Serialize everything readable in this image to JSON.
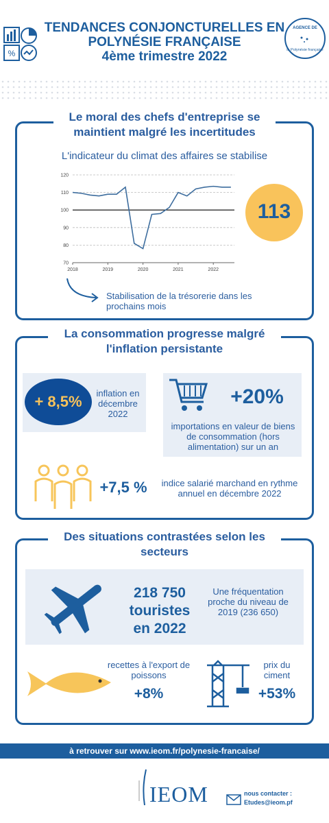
{
  "header": {
    "title_lines": [
      "TENDANCES CONJONCTURELLES EN",
      "POLYNÉSIE FRANÇAISE",
      "4ème trimestre 2022"
    ],
    "logo_top": "AGENCE DE",
    "logo_bottom": "la Polynésie française"
  },
  "section1": {
    "heading": "Le moral des chefs d'entreprise se maintient malgré les incertitudes",
    "subtitle": "L'indicateur du climat des affaires se stabilise",
    "highlight": "113",
    "note": "Stabilisation de la trésorerie dans les prochains mois"
  },
  "chart_data": {
    "type": "line",
    "x": [
      2018,
      2018.25,
      2018.5,
      2018.75,
      2019,
      2019.25,
      2019.5,
      2019.75,
      2020,
      2020.25,
      2020.5,
      2020.75,
      2021,
      2021.25,
      2021.5,
      2021.75,
      2022,
      2022.25,
      2022.5
    ],
    "series": [
      {
        "color": "#3d6d9e",
        "values": [
          110,
          109.5,
          108.5,
          108,
          109,
          109,
          113,
          81,
          78,
          97.5,
          98,
          101.5,
          110,
          108,
          112,
          113,
          113.5,
          113,
          113
        ]
      }
    ],
    "xlim": [
      2018,
      2022.6
    ],
    "xticks": [
      2018,
      2019,
      2020,
      2021,
      2022
    ],
    "ylim": [
      70,
      120
    ],
    "yticks": [
      70,
      80,
      90,
      100,
      110,
      120
    ],
    "grid": true,
    "baseline": 100
  },
  "section2": {
    "heading": "La consommation progresse malgré l'inflation persistante",
    "inflation_value": "+ 8,5%",
    "inflation_text": "inflation en décembre 2022",
    "imports_value": "+20%",
    "imports_text": "importations en valeur de biens de consommation  (hors alimentation) sur un an",
    "wages_value": "+7,5 %",
    "wages_text": "indice salarié marchand en rythme annuel en décembre 2022"
  },
  "section3": {
    "heading": "Des situations contrastées selon les secteurs",
    "tourists_value": "218 750 touristes en 2022",
    "tourists_text": "Une fréquentation proche du niveau de 2019 (236 650)",
    "fish_text": "recettes à l'export de poissons",
    "fish_value": "+8%",
    "cement_text": "prix du ciment",
    "cement_value": "+53%"
  },
  "footer": {
    "link": "à retrouver sur www.ieom.fr/polynesie-francaise/",
    "brand": "IEOM",
    "contact_label": "nous contacter :",
    "contact_email": "Etudes@ieom.pf"
  }
}
